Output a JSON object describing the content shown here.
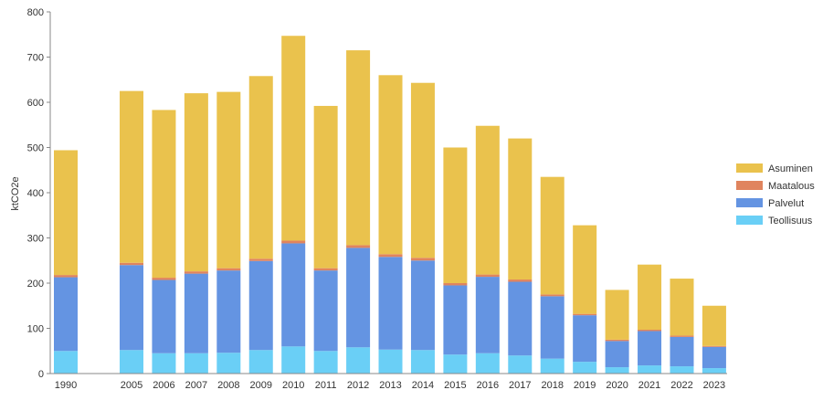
{
  "chart_data": {
    "type": "bar",
    "stacked": true,
    "ylabel": "ktCO2e",
    "xlabel": "",
    "ylim": [
      0,
      800
    ],
    "yticks": [
      0,
      100,
      200,
      300,
      400,
      500,
      600,
      700,
      800
    ],
    "grid": false,
    "legend_position": "right",
    "categories": [
      "1990",
      "2005",
      "2006",
      "2007",
      "2008",
      "2009",
      "2010",
      "2011",
      "2012",
      "2013",
      "2014",
      "2015",
      "2016",
      "2017",
      "2018",
      "2019",
      "2020",
      "2021",
      "2022",
      "2023"
    ],
    "series": [
      {
        "name": "Teollisuus",
        "color": "#6acff6",
        "values": [
          50,
          52,
          45,
          45,
          46,
          52,
          60,
          50,
          58,
          53,
          52,
          42,
          45,
          40,
          33,
          26,
          14,
          18,
          16,
          12
        ]
      },
      {
        "name": "Palvelut",
        "color": "#6494e2",
        "values": [
          163,
          188,
          162,
          176,
          182,
          197,
          228,
          178,
          220,
          205,
          198,
          153,
          169,
          163,
          138,
          103,
          58,
          76,
          65,
          47
        ]
      },
      {
        "name": "Maatalous",
        "color": "#e0845e",
        "values": [
          5,
          5,
          5,
          5,
          5,
          5,
          6,
          5,
          6,
          6,
          6,
          5,
          5,
          5,
          4,
          3,
          3,
          3,
          3,
          2
        ]
      },
      {
        "name": "Asuminen",
        "color": "#eac24d",
        "values": [
          276,
          380,
          371,
          394,
          390,
          404,
          453,
          359,
          431,
          396,
          387,
          300,
          329,
          312,
          260,
          196,
          110,
          144,
          126,
          89
        ]
      }
    ]
  }
}
